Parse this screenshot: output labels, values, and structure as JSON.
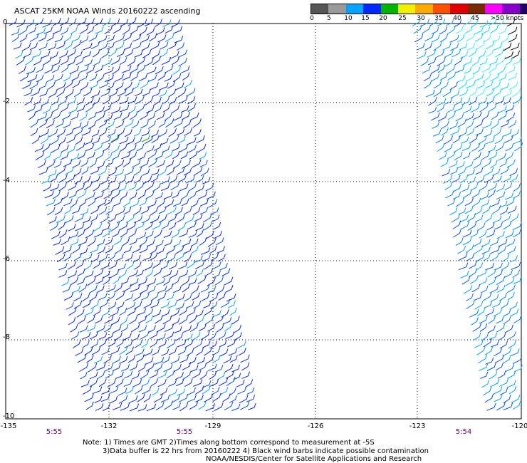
{
  "title": "ASCAT 25KM NOAA Winds 20160222 ascending",
  "legend": {
    "colors": [
      "#555555",
      "#9a9a9a",
      "#00a4ff",
      "#0028ff",
      "#00b400",
      "#f0f000",
      "#ffaa00",
      "#ff5000",
      "#e00000",
      "#7a2a00",
      "#ff00ff",
      "#8800cc",
      "#220066"
    ],
    "labels": [
      "0",
      "5",
      "10",
      "15",
      "20",
      "25",
      "30",
      "35",
      "40",
      "45",
      ">50 knots"
    ]
  },
  "axes": {
    "x_ticks": [
      "-135",
      "-132",
      "-129",
      "-126",
      "-123",
      "-120"
    ],
    "y_ticks": [
      "0",
      "-2",
      "-4",
      "-6",
      "-8",
      "-10"
    ],
    "xlim": [
      -135,
      -120.3
    ],
    "ylim": [
      -10,
      0
    ]
  },
  "times": [
    "5:55",
    "5:55",
    "5:54"
  ],
  "notes": [
    "Note: 1) Times are GMT 2)Times along bottom correspond to measurement at -5S",
    "3)Data buffer is 22 hrs from 20160222 4) Black wind barbs indicate possible contamination",
    "NOAA/NESDIS/Center for Satellite Applications and Research"
  ]
}
